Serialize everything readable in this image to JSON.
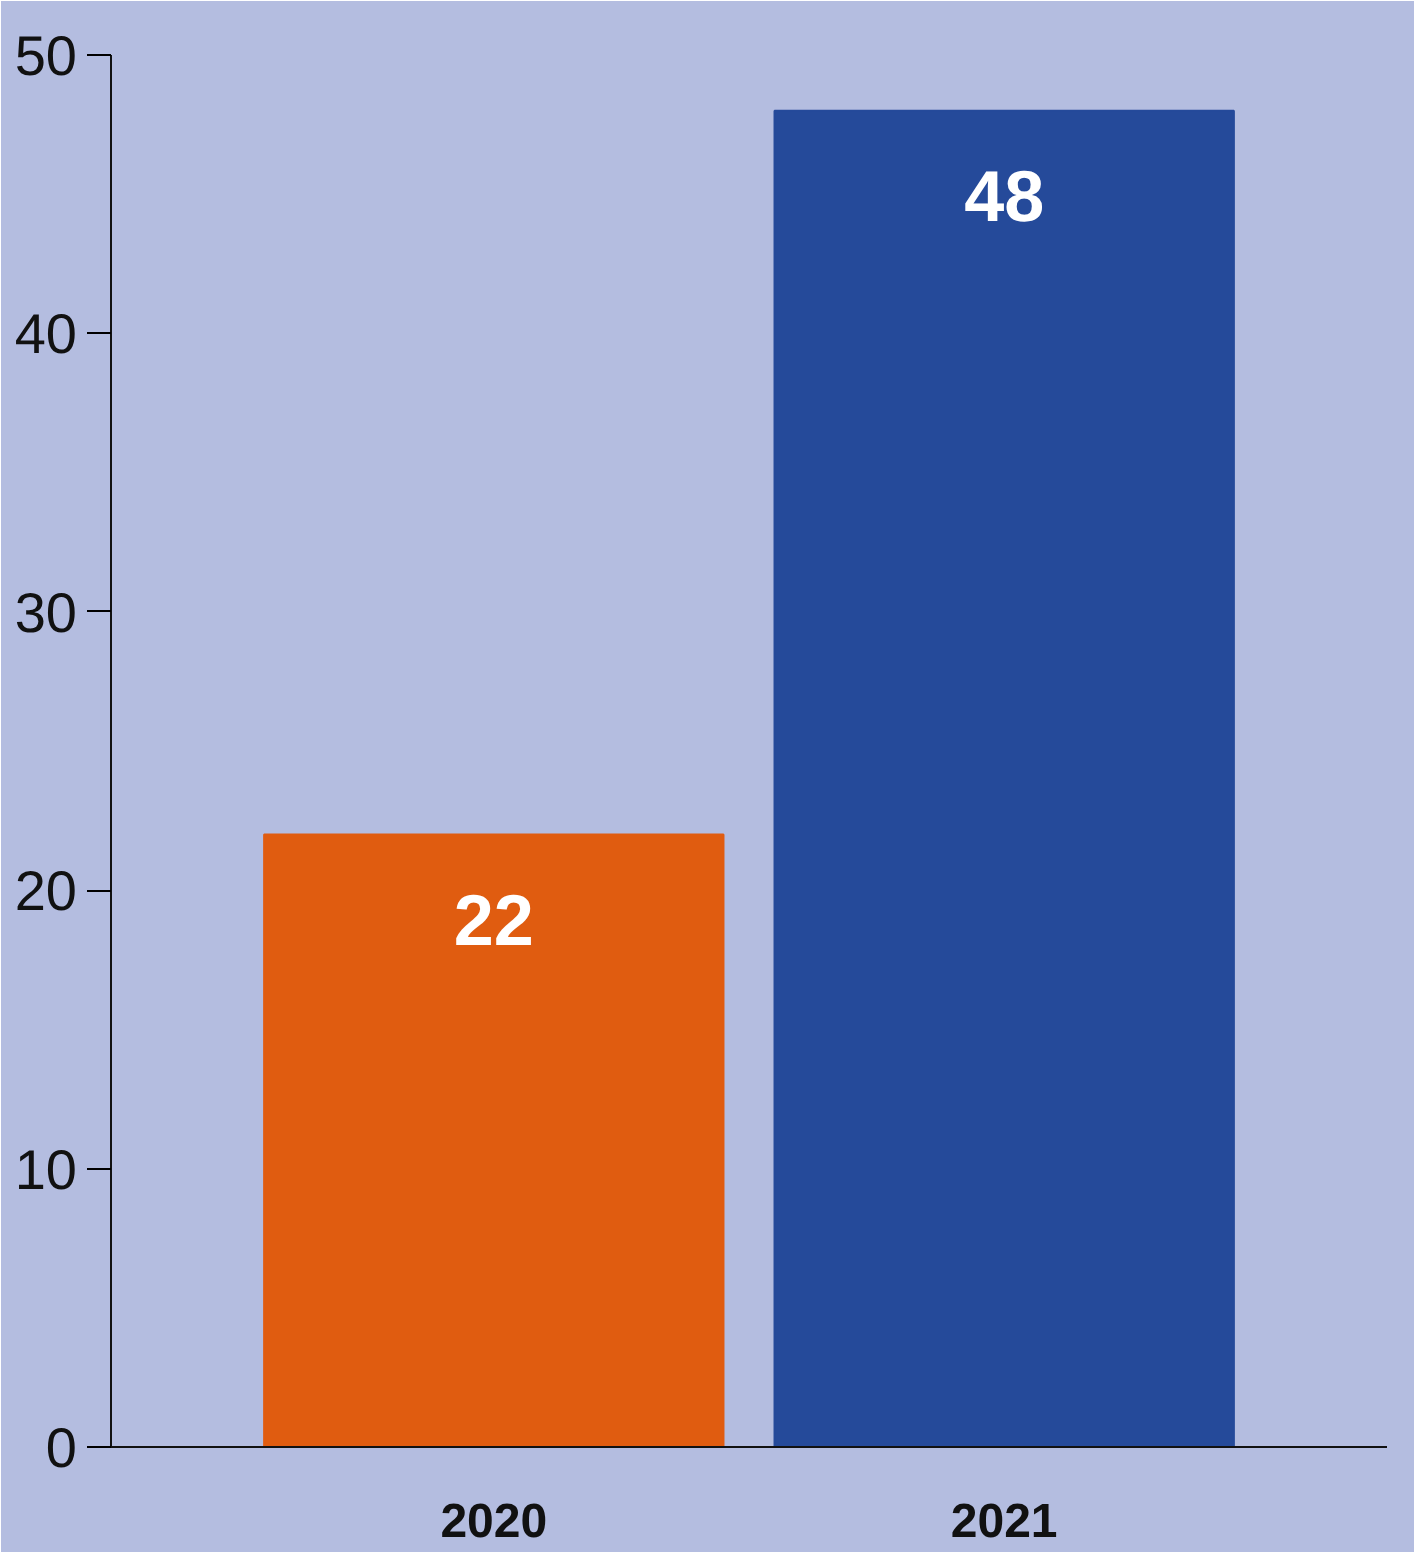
{
  "chart_data": {
    "type": "bar",
    "categories": [
      "2020",
      "2021"
    ],
    "values": [
      22,
      48
    ],
    "colors": [
      "#e05c10",
      "#254a9a"
    ],
    "ylim": [
      0,
      50
    ],
    "yticks": [
      0,
      10,
      20,
      30,
      40,
      50
    ],
    "data_labels": true
  }
}
